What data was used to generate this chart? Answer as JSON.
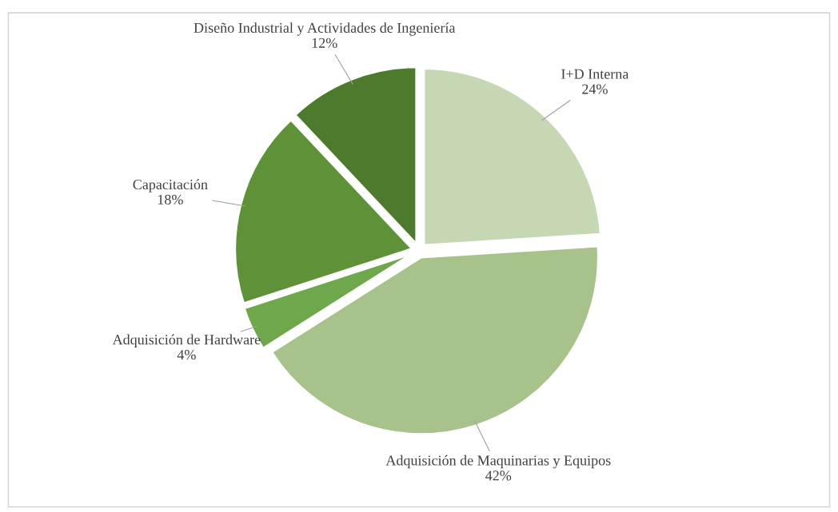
{
  "chart_data": {
    "type": "pie",
    "categories": [
      "I+D Interna",
      "Adquisición de Maquinarias y Equipos",
      "Adquisición de Hardware",
      "Capacitación",
      "Diseño Industrial y Actividades de Ingeniería"
    ],
    "values": [
      24,
      42,
      4,
      18,
      12
    ],
    "value_labels": [
      "24%",
      "42%",
      "4%",
      "18%",
      "12%"
    ],
    "colors": [
      "#c6d7b3",
      "#a8c28c",
      "#6fa84c",
      "#5f9139",
      "#4d7a2c"
    ],
    "legend": false
  }
}
